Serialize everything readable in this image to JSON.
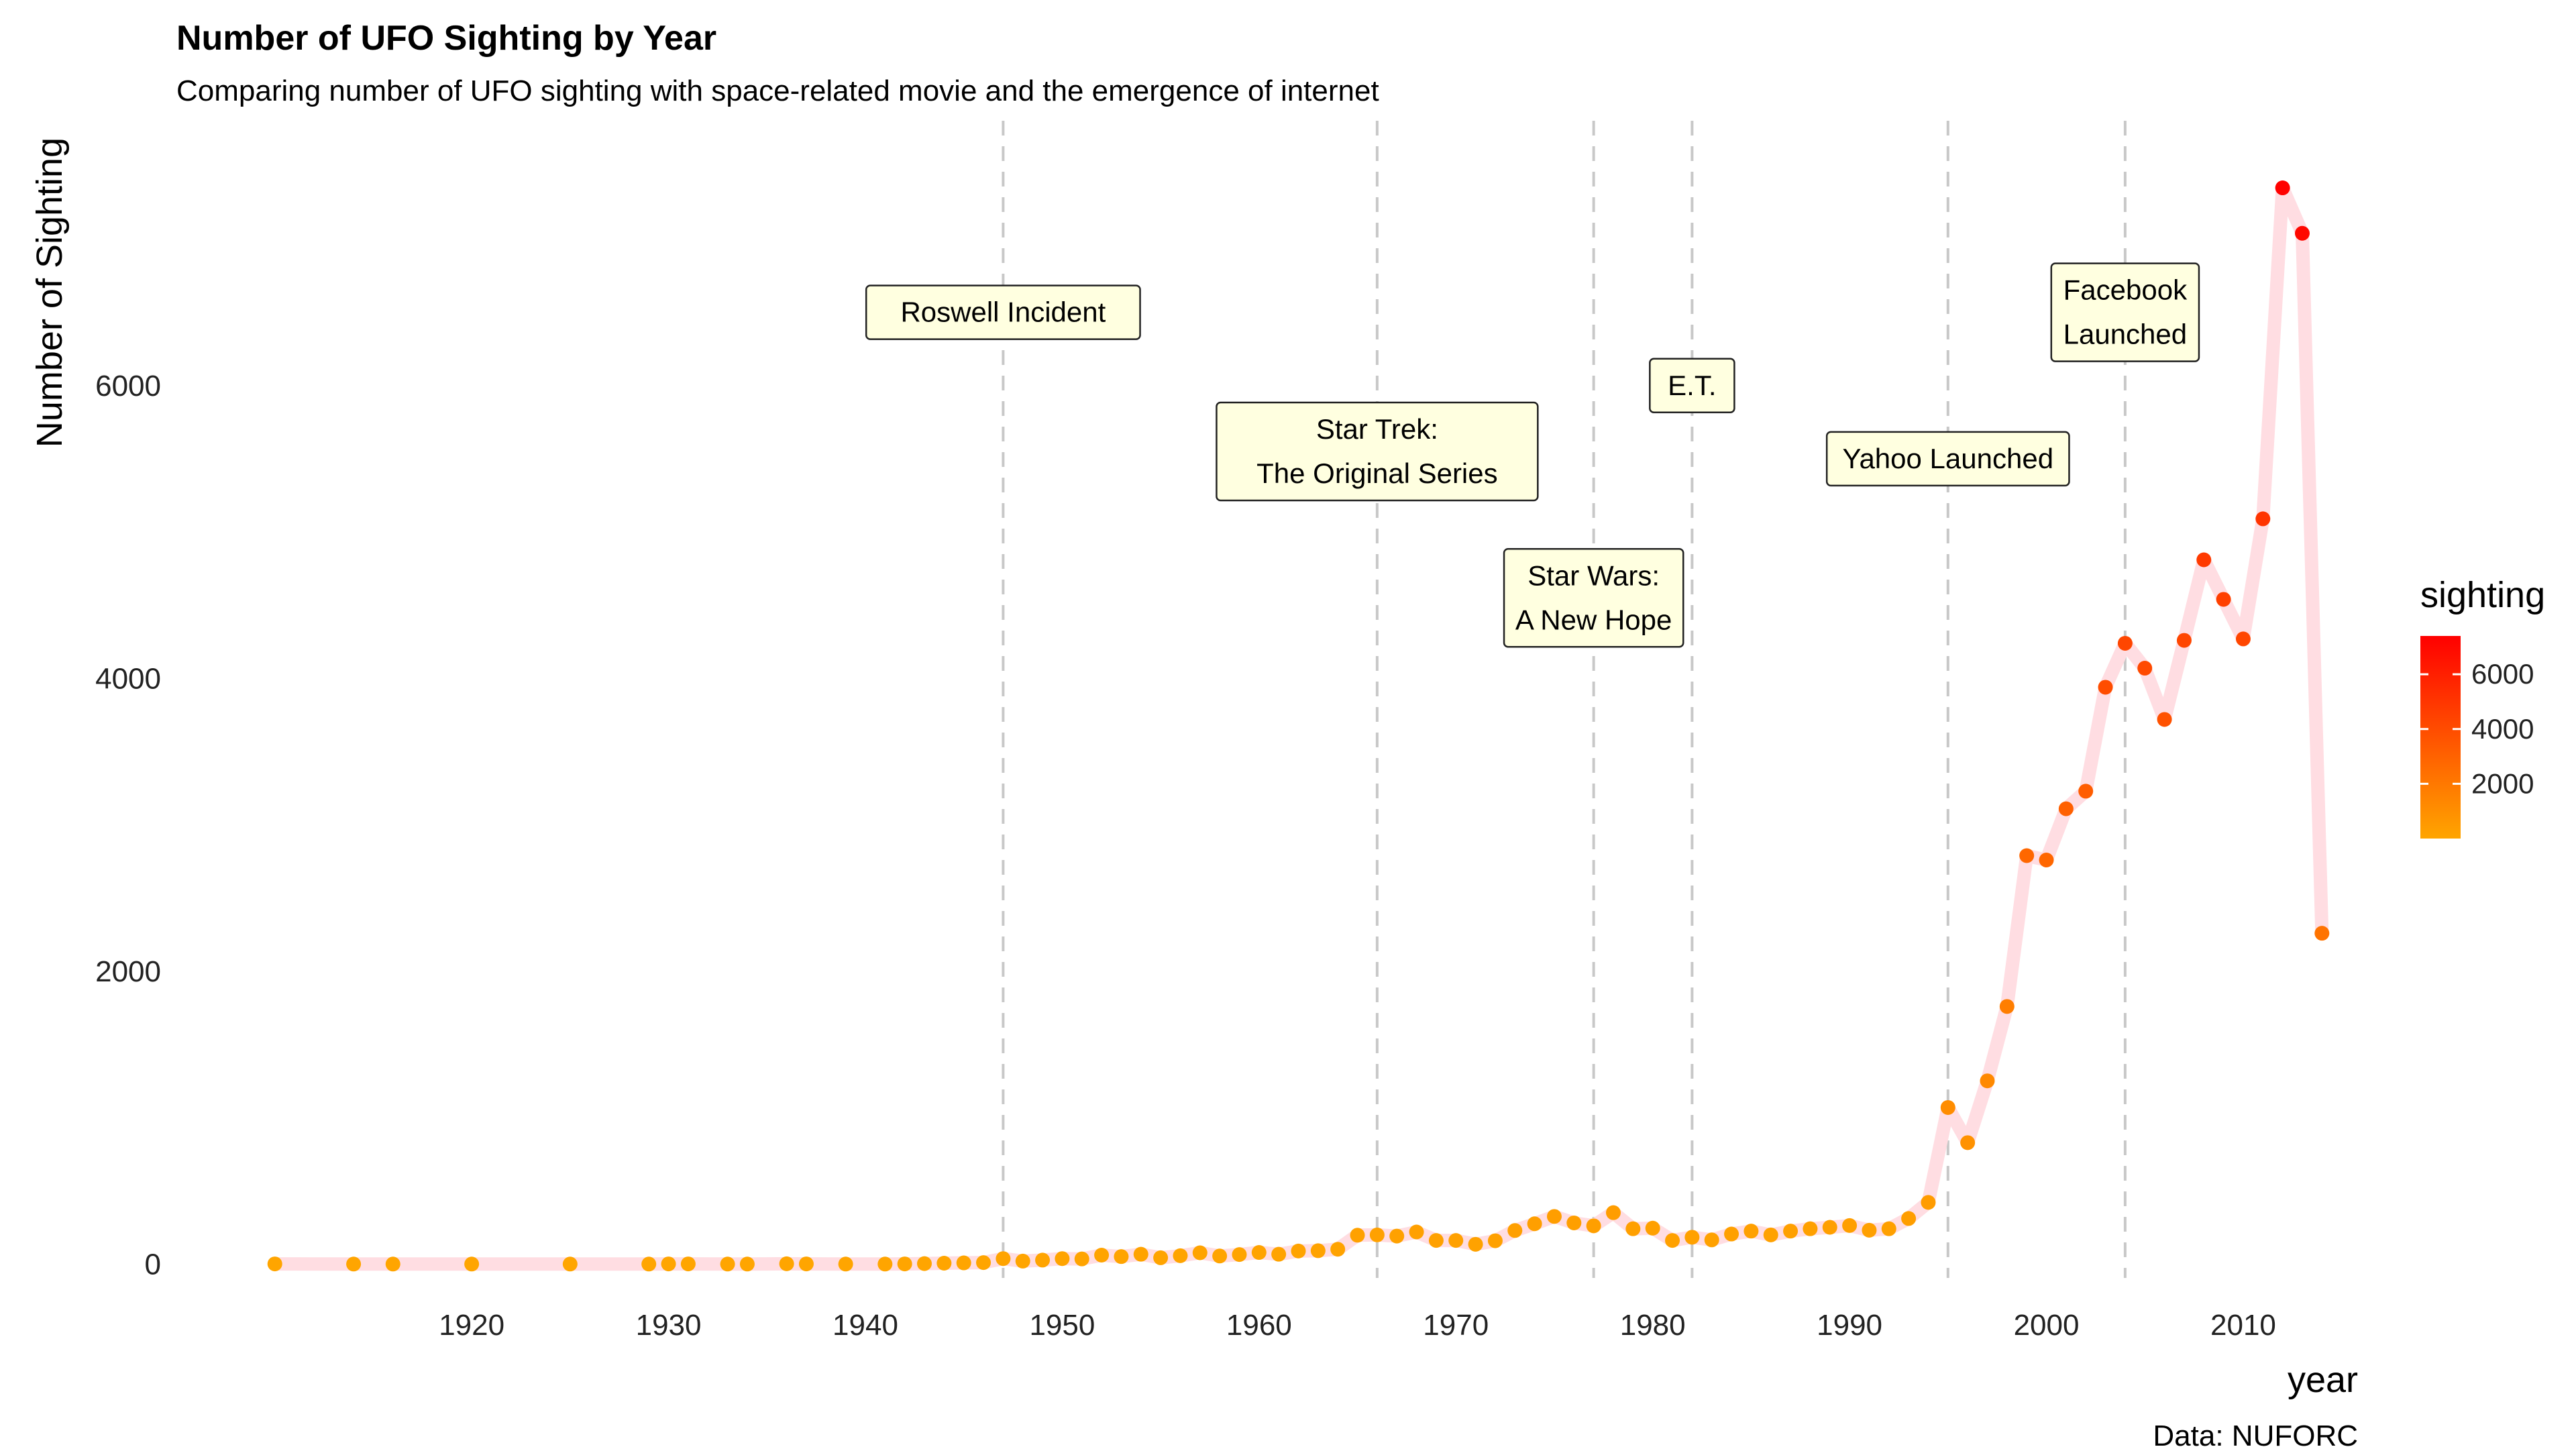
{
  "chart_data": {
    "type": "line",
    "title": "Number of UFO Sighting by Year",
    "subtitle": "Comparing number of UFO sighting with space-related movie and the emergence of internet",
    "xlabel": "year",
    "ylabel": "Number of Sighting",
    "caption": "Data: NUFORC",
    "xlim": [
      1905,
      2016
    ],
    "ylim": [
      -300,
      7900
    ],
    "x_ticks": [
      1920,
      1930,
      1940,
      1950,
      1960,
      1970,
      1980,
      1990,
      2000,
      2010
    ],
    "y_ticks": [
      0,
      2000,
      4000,
      6000
    ],
    "grid": false,
    "line_color": "#ffdde2",
    "color_scale": {
      "low": "#ffa500",
      "high": "#ff0000",
      "min": 0,
      "max": 7400
    },
    "legend": {
      "title": "sighting",
      "position": "right",
      "ticks": [
        2000,
        4000,
        6000
      ]
    },
    "series": [
      {
        "x": [
          1910,
          1914,
          1916,
          1920,
          1925,
          1929,
          1930,
          1931,
          1933,
          1934,
          1936,
          1937,
          1939,
          1941,
          1942,
          1943,
          1944,
          1945,
          1946,
          1947,
          1948,
          1949,
          1950,
          1951,
          1952,
          1953,
          1954,
          1955,
          1956,
          1957,
          1958,
          1959,
          1960,
          1961,
          1962,
          1963,
          1964,
          1965,
          1966,
          1967,
          1968,
          1969,
          1970,
          1971,
          1972,
          1973,
          1974,
          1975,
          1976,
          1977,
          1978,
          1979,
          1980,
          1981,
          1982,
          1983,
          1984,
          1985,
          1986,
          1987,
          1988,
          1989,
          1990,
          1991,
          1992,
          1993,
          1994,
          1995,
          1996,
          1997,
          1998,
          1999,
          2000,
          2001,
          2002,
          2003,
          2004,
          2005,
          2006,
          2007,
          2008,
          2009,
          2010,
          2011,
          2012,
          2013,
          2014
        ],
        "values": [
          2,
          1,
          1,
          1,
          1,
          1,
          2,
          2,
          1,
          1,
          3,
          2,
          1,
          1,
          2,
          4,
          7,
          9,
          11,
          38,
          21,
          28,
          38,
          36,
          62,
          52,
          68,
          44,
          58,
          78,
          56,
          66,
          80,
          68,
          90,
          92,
          102,
          198,
          200,
          192,
          220,
          162,
          162,
          136,
          160,
          230,
          276,
          326,
          282,
          262,
          352,
          242,
          246,
          162,
          184,
          166,
          206,
          226,
          200,
          226,
          242,
          252,
          264,
          232,
          242,
          312,
          422,
          1070,
          830,
          1252,
          1760,
          2790,
          2760,
          3110,
          3230,
          3940,
          4240,
          4070,
          3720,
          4260,
          4810,
          4540,
          4270,
          5090,
          7350,
          7040,
          2260
        ]
      }
    ],
    "events": [
      {
        "year": 1947,
        "label": [
          "Roswell Incident"
        ],
        "y": 6500
      },
      {
        "year": 1966,
        "label": [
          "Star Trek:",
          "The Original Series"
        ],
        "y": 5550
      },
      {
        "year": 1977,
        "label": [
          "Star Wars:",
          "A New Hope"
        ],
        "y": 4550
      },
      {
        "year": 1982,
        "label": [
          "E.T."
        ],
        "y": 6000
      },
      {
        "year": 1995,
        "label": [
          "Yahoo Launched"
        ],
        "y": 5500
      },
      {
        "year": 2004,
        "label": [
          "Facebook",
          "Launched"
        ],
        "y": 6500
      }
    ]
  }
}
